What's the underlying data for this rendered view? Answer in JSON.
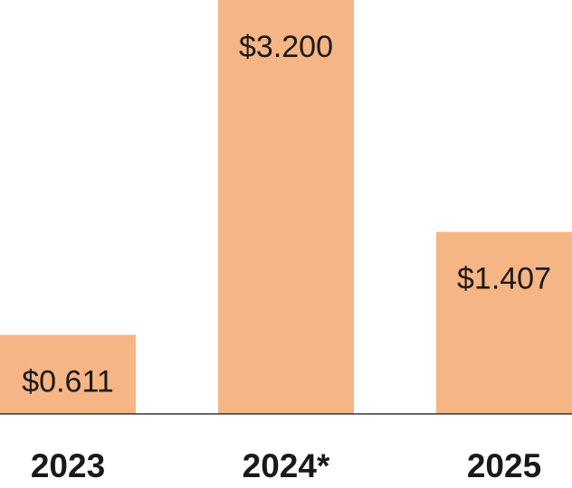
{
  "chart_data": {
    "type": "bar",
    "categories": [
      "2023",
      "2024*",
      "2025"
    ],
    "values": [
      0.611,
      3.2,
      1.407
    ],
    "value_labels": [
      "$0.611",
      "$3.200",
      "$1.407"
    ],
    "color": "#f6b585"
  }
}
